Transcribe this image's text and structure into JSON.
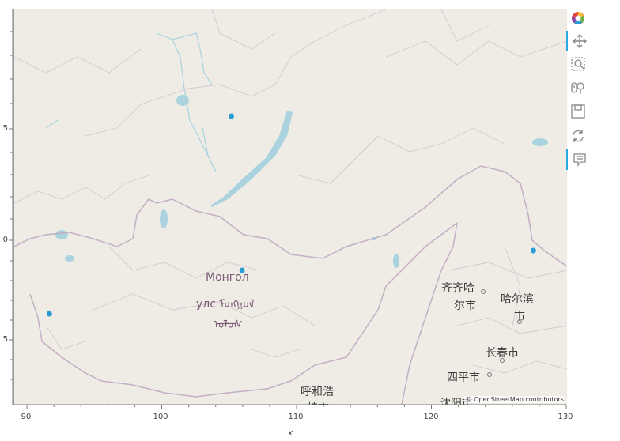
{
  "plot": {
    "x_axis_label": "x",
    "x_ticks": [
      "90",
      "100",
      "110",
      "120",
      "130"
    ],
    "y_ticks": [
      "5",
      "0",
      "5"
    ]
  },
  "map": {
    "attribution": "© OpenStreetMap contributors",
    "places": {
      "mongolia_1": "Монгол",
      "mongolia_2": "улс ᠮᠣᠩᠭᠣᠯ",
      "mongolia_3": "ᠤᠯᠤᠰ",
      "qiqihar_1": "齐齐哈",
      "qiqihar_2": "尔市",
      "harbin_1": "哈尔滨",
      "harbin_2": "市",
      "changchun": "长春市",
      "siping": "四平市",
      "hohhot": "呼和浩",
      "hohhot_partial": "特市",
      "shenyang_partial": "沈阳市"
    },
    "points_color": "#2b9bd6"
  },
  "chart_data": {
    "type": "scatter",
    "x_ticks": [
      90,
      100,
      110,
      120,
      130
    ],
    "xlim": [
      89,
      130
    ],
    "xlabel": "x",
    "points": [
      {
        "x": 105.1,
        "y": 51.8
      },
      {
        "x": 105.9,
        "y": 47.9
      },
      {
        "x": 91.6,
        "y": 46.8
      },
      {
        "x": 127.5,
        "y": 48.4
      }
    ]
  },
  "toolbar": {
    "tools": [
      "bokeh-logo",
      "pan-tool",
      "box-zoom-tool",
      "wheel-zoom-tool",
      "save-tool",
      "reset-tool",
      "hover-tool"
    ]
  }
}
